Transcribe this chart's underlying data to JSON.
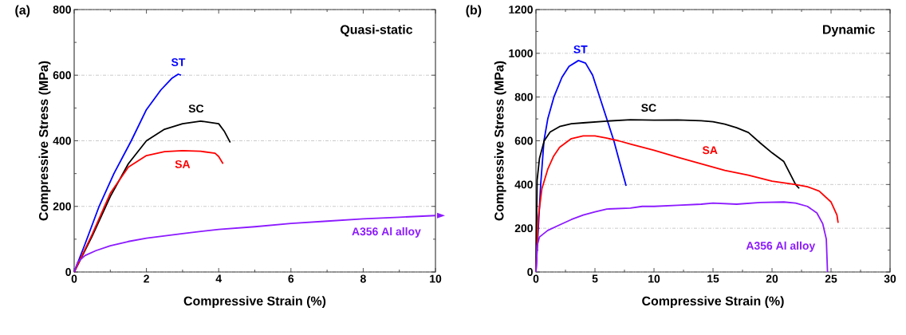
{
  "chart_data": [
    {
      "type": "line",
      "xlabel": "Compressive Strain (%)",
      "ylabel": "Compressive Stress (MPa)",
      "annotations": [
        "(a)",
        "Quasi-static"
      ],
      "xlim": [
        0,
        10
      ],
      "ylim": [
        0,
        800
      ],
      "xticks": [
        0,
        2,
        4,
        6,
        8,
        10
      ],
      "yticks": [
        0,
        200,
        400,
        600,
        800
      ],
      "grid": "y",
      "series": [
        {
          "name": "ST",
          "color": "#0000ff",
          "x": [
            0,
            0.3,
            0.69,
            1.1,
            1.58,
            2.0,
            2.4,
            2.7,
            2.88,
            2.96
          ],
          "values": [
            0,
            85,
            200,
            300,
            400,
            495,
            555,
            590,
            603,
            600
          ]
        },
        {
          "name": "SC",
          "color": "#000000",
          "x": [
            0,
            0.5,
            1.0,
            1.5,
            2.0,
            2.5,
            3.0,
            3.5,
            4.0,
            4.15,
            4.32
          ],
          "values": [
            0,
            110,
            230,
            330,
            400,
            435,
            452,
            460,
            452,
            430,
            395
          ]
        },
        {
          "name": "SA",
          "color": "#ff0000",
          "x": [
            0,
            0.5,
            1.0,
            1.5,
            2.0,
            2.5,
            3.0,
            3.5,
            3.9,
            4.0,
            4.12
          ],
          "values": [
            0,
            115,
            240,
            320,
            355,
            367,
            370,
            368,
            362,
            352,
            330
          ]
        },
        {
          "name": "A356 Al alloy",
          "color": "#8c1aff",
          "x": [
            0,
            0.1,
            0.3,
            0.6,
            1,
            1.5,
            2,
            3,
            4,
            5,
            6,
            7,
            8,
            9,
            10
          ],
          "values": [
            0,
            30,
            50,
            65,
            80,
            93,
            103,
            117,
            130,
            138,
            148,
            155,
            162,
            167,
            172
          ]
        }
      ]
    },
    {
      "type": "line",
      "xlabel": "Compressive Strain (%)",
      "ylabel": "Compressive Stress (MPa)",
      "annotations": [
        "(b)",
        "Dynamic"
      ],
      "xlim": [
        0,
        30
      ],
      "ylim": [
        0,
        1200
      ],
      "xticks": [
        0,
        5,
        10,
        15,
        20,
        25,
        30
      ],
      "yticks": [
        0,
        200,
        400,
        600,
        800,
        1000,
        1200
      ],
      "grid": "y",
      "series": [
        {
          "name": "ST",
          "color": "#0000ff",
          "x": [
            0,
            0.2,
            0.4,
            0.68,
            1.0,
            1.52,
            2.2,
            2.8,
            3.6,
            4.2,
            4.8,
            5.4,
            6.0,
            6.6,
            7.1,
            7.64
          ],
          "values": [
            0,
            200,
            400,
            600,
            700,
            800,
            890,
            940,
            967,
            955,
            900,
            800,
            700,
            600,
            500,
            394
          ]
        },
        {
          "name": "SC",
          "color": "#000000",
          "x": [
            0,
            0.1,
            0.3,
            0.7,
            1.2,
            2,
            3,
            4,
            6,
            8,
            10,
            12,
            14,
            15,
            16,
            17,
            18,
            19,
            20,
            21,
            22,
            22.3
          ],
          "values": [
            0,
            420,
            520,
            600,
            640,
            665,
            678,
            682,
            690,
            696,
            694,
            695,
            692,
            687,
            676,
            660,
            638,
            590,
            545,
            505,
            400,
            382
          ]
        },
        {
          "name": "SA",
          "color": "#ff0000",
          "x": [
            0,
            0.2,
            0.5,
            1,
            1.5,
            2,
            3,
            4,
            5,
            6,
            7,
            8,
            10,
            12,
            14,
            16,
            18,
            20,
            22,
            23,
            24,
            25,
            25.5,
            25.6
          ],
          "values": [
            0,
            250,
            380,
            470,
            530,
            570,
            610,
            622,
            622,
            612,
            600,
            585,
            557,
            525,
            495,
            465,
            443,
            415,
            400,
            390,
            370,
            320,
            260,
            225
          ]
        },
        {
          "name": "A356 Al alloy",
          "color": "#8c1aff",
          "x": [
            0,
            0.1,
            0.3,
            1,
            2,
            3,
            4,
            5,
            6,
            8,
            9,
            10,
            12,
            14,
            15,
            17,
            19,
            21,
            22,
            23,
            23.8,
            24.3,
            24.6,
            24.7
          ],
          "values": [
            0,
            120,
            160,
            190,
            215,
            240,
            260,
            275,
            288,
            292,
            300,
            300,
            305,
            310,
            315,
            310,
            318,
            320,
            315,
            300,
            270,
            220,
            150,
            0
          ]
        }
      ]
    }
  ]
}
